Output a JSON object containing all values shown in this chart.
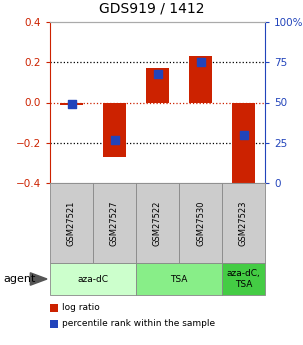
{
  "title": "GDS919 / 1412",
  "samples": [
    "GSM27521",
    "GSM27527",
    "GSM27522",
    "GSM27530",
    "GSM27523"
  ],
  "log_ratios": [
    -0.01,
    -0.27,
    0.17,
    0.23,
    -0.42
  ],
  "percentile_ranks": [
    49,
    27,
    68,
    75,
    30
  ],
  "ylim_left": [
    -0.4,
    0.4
  ],
  "yticks_left": [
    -0.4,
    -0.2,
    0.0,
    0.2,
    0.4
  ],
  "yticks_right": [
    0,
    25,
    50,
    75,
    100
  ],
  "groups": [
    {
      "label": "aza-dC",
      "color": "#ccffcc",
      "start": 0,
      "end": 2
    },
    {
      "label": "TSA",
      "color": "#88ee88",
      "start": 2,
      "end": 4
    },
    {
      "label": "aza-dC,\nTSA",
      "color": "#44cc44",
      "start": 4,
      "end": 5
    }
  ],
  "bar_color": "#cc2200",
  "dot_color": "#2244bb",
  "bar_width": 0.55,
  "dot_size": 38,
  "legend_red": "log ratio",
  "legend_blue": "percentile rank within the sample",
  "sample_box_color": "#cccccc",
  "hgrid_vals": [
    -0.2,
    0.0,
    0.2
  ],
  "hgrid_colors": [
    "#000000",
    "#cc2200",
    "#000000"
  ],
  "agent_label": "agent"
}
